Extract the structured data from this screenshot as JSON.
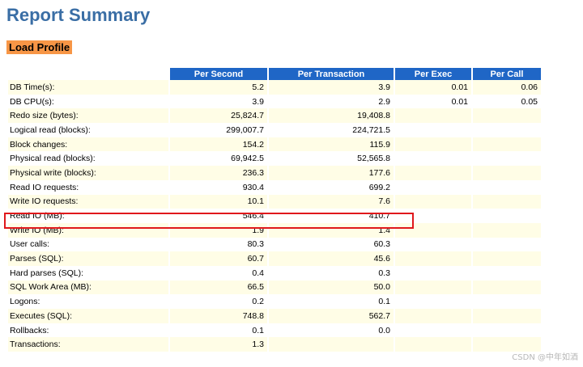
{
  "title": "Report Summary",
  "section": "Load Profile",
  "columns": [
    "Per Second",
    "Per Transaction",
    "Per Exec",
    "Per Call"
  ],
  "rows": [
    {
      "label": "DB Time(s):",
      "per_second": "5.2",
      "per_transaction": "3.9",
      "per_exec": "0.01",
      "per_call": "0.06"
    },
    {
      "label": "DB CPU(s):",
      "per_second": "3.9",
      "per_transaction": "2.9",
      "per_exec": "0.01",
      "per_call": "0.05"
    },
    {
      "label": "Redo size (bytes):",
      "per_second": "25,824.7",
      "per_transaction": "19,408.8",
      "per_exec": "",
      "per_call": ""
    },
    {
      "label": "Logical read (blocks):",
      "per_second": "299,007.7",
      "per_transaction": "224,721.5",
      "per_exec": "",
      "per_call": ""
    },
    {
      "label": "Block changes:",
      "per_second": "154.2",
      "per_transaction": "115.9",
      "per_exec": "",
      "per_call": ""
    },
    {
      "label": "Physical read (blocks):",
      "per_second": "69,942.5",
      "per_transaction": "52,565.8",
      "per_exec": "",
      "per_call": ""
    },
    {
      "label": "Physical write (blocks):",
      "per_second": "236.3",
      "per_transaction": "177.6",
      "per_exec": "",
      "per_call": ""
    },
    {
      "label": "Read IO requests:",
      "per_second": "930.4",
      "per_transaction": "699.2",
      "per_exec": "",
      "per_call": ""
    },
    {
      "label": "Write IO requests:",
      "per_second": "10.1",
      "per_transaction": "7.6",
      "per_exec": "",
      "per_call": ""
    },
    {
      "label": "Read IO (MB):",
      "per_second": "546.4",
      "per_transaction": "410.7",
      "per_exec": "",
      "per_call": ""
    },
    {
      "label": "Write IO (MB):",
      "per_second": "1.9",
      "per_transaction": "1.4",
      "per_exec": "",
      "per_call": ""
    },
    {
      "label": "User calls:",
      "per_second": "80.3",
      "per_transaction": "60.3",
      "per_exec": "",
      "per_call": ""
    },
    {
      "label": "Parses (SQL):",
      "per_second": "60.7",
      "per_transaction": "45.6",
      "per_exec": "",
      "per_call": ""
    },
    {
      "label": "Hard parses (SQL):",
      "per_second": "0.4",
      "per_transaction": "0.3",
      "per_exec": "",
      "per_call": ""
    },
    {
      "label": "SQL Work Area (MB):",
      "per_second": "66.5",
      "per_transaction": "50.0",
      "per_exec": "",
      "per_call": ""
    },
    {
      "label": "Logons:",
      "per_second": "0.2",
      "per_transaction": "0.1",
      "per_exec": "",
      "per_call": ""
    },
    {
      "label": "Executes (SQL):",
      "per_second": "748.8",
      "per_transaction": "562.7",
      "per_exec": "",
      "per_call": ""
    },
    {
      "label": "Rollbacks:",
      "per_second": "0.1",
      "per_transaction": "0.0",
      "per_exec": "",
      "per_call": ""
    },
    {
      "label": "Transactions:",
      "per_second": "1.3",
      "per_transaction": "",
      "per_exec": "",
      "per_call": ""
    }
  ],
  "watermark": "CSDN @中年如酒",
  "colors": {
    "title": "#3a6ea5",
    "section_bg": "#f79646",
    "header_bg": "#1f66c6",
    "row_tint": "#fffde6",
    "highlight_border": "#e0181b"
  }
}
